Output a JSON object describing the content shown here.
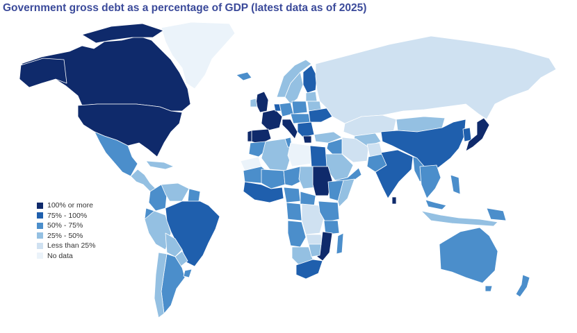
{
  "title": "Government gross debt as a percentage of GDP (latest data as of 2025)",
  "colors": {
    "over_100": "#0f2a6b",
    "75_100": "#1f5fad",
    "50_75": "#4b8ecb",
    "25_50": "#94c0e2",
    "under_25": "#cfe1f1",
    "no_data": "#ebf3fa"
  },
  "legend": [
    {
      "label": "100% or more",
      "color": "#0f2a6b"
    },
    {
      "label": "75% - 100%",
      "color": "#1f5fad"
    },
    {
      "label": "50% - 75%",
      "color": "#4b8ecb"
    },
    {
      "label": "25% - 50%",
      "color": "#94c0e2"
    },
    {
      "label": "Less than 25%",
      "color": "#cfe1f1"
    },
    {
      "label": "No data",
      "color": "#ebf3fa"
    }
  ]
}
